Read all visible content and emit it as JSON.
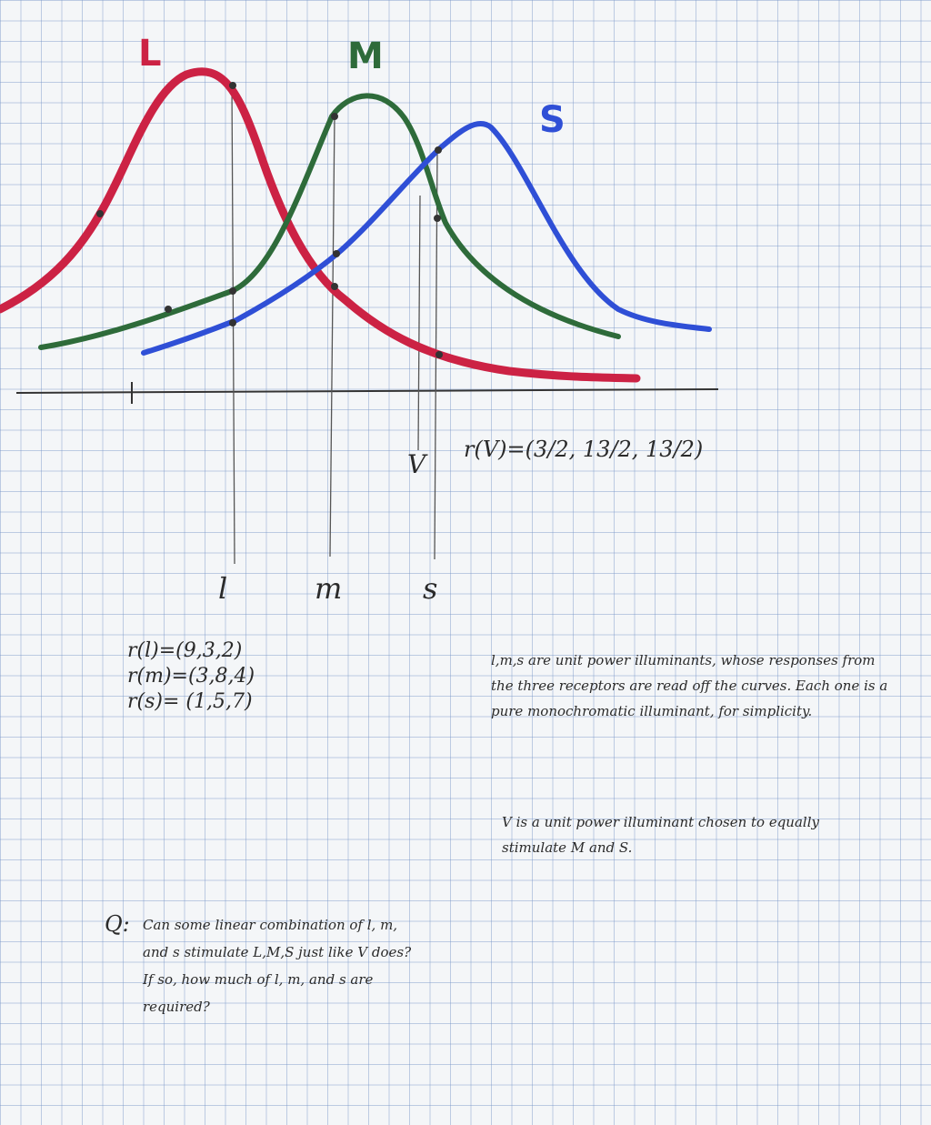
{
  "graph": {
    "curve_labels": {
      "L": "L",
      "M": "M",
      "S": "S"
    },
    "axis_marks": {
      "l": "l",
      "m": "m",
      "s": "s",
      "V": "V"
    },
    "rv_formula": "r(V)=(3/2, 13/2, 13/2)",
    "colors": {
      "L": "#cc2244",
      "M": "#2e6b3a",
      "S": "#2f4fd6"
    }
  },
  "responses": [
    "r(l)=(9,3,2)",
    "r(m)=(3,8,4)",
    "r(s)= (1,5,7)"
  ],
  "explanation": {
    "text": "l,m,s are unit power illuminants, whose responses from the three receptors are read off the curves. Each one is a pure monochromatic illuminant, for simplicity.",
    "v_text": "V is a unit power illuminant chosen to equally stimulate M and S."
  },
  "question": {
    "label": "Q:",
    "text": "Can some linear combination of l, m, and s stimulate L,M,S just like V does? If so, how much of l, m, and s are required?"
  }
}
